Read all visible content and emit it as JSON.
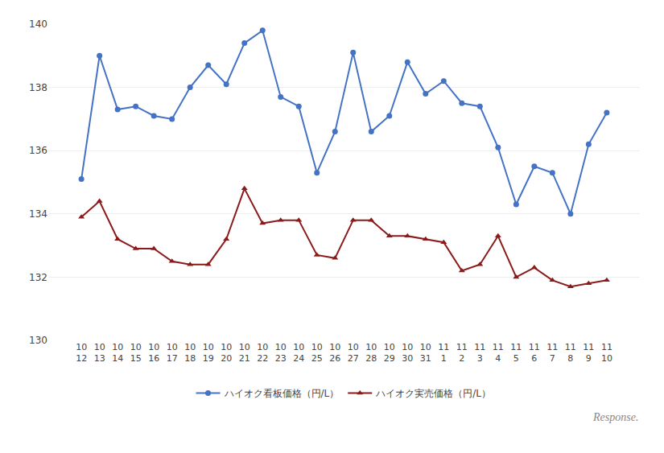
{
  "chart_data": {
    "type": "line",
    "categories": [
      "10\n12",
      "10\n13",
      "10\n14",
      "10\n15",
      "10\n16",
      "10\n17",
      "10\n18",
      "10\n19",
      "10\n20",
      "10\n21",
      "10\n22",
      "10\n23",
      "10\n24",
      "10\n25",
      "10\n26",
      "10\n27",
      "10\n28",
      "10\n29",
      "10\n30",
      "10\n31",
      "11\n1",
      "11\n2",
      "11\n3",
      "11\n4",
      "11\n5",
      "11\n6",
      "11\n7",
      "11\n8",
      "11\n9",
      "11\n10"
    ],
    "series": [
      {
        "name": "ハイオク看板価格（円/L）",
        "color": "#4472C4",
        "marker": "circle",
        "line_style": "solid",
        "values": [
          135.1,
          139.0,
          137.3,
          137.4,
          137.1,
          137.0,
          138.0,
          138.7,
          138.1,
          139.4,
          139.8,
          137.7,
          137.4,
          135.3,
          136.6,
          139.1,
          136.6,
          137.1,
          138.8,
          137.8,
          138.2,
          137.5,
          137.4,
          136.1,
          134.3,
          135.5,
          135.3,
          134.0,
          136.2,
          137.2
        ]
      },
      {
        "name": "ハイオク実売価格（円/L）",
        "color": "#8B1A1A",
        "marker": "triangle",
        "line_style": "solid",
        "values": [
          133.9,
          134.4,
          133.2,
          132.9,
          132.9,
          132.5,
          132.4,
          132.4,
          133.2,
          134.8,
          133.7,
          133.8,
          133.8,
          132.7,
          132.6,
          133.8,
          133.8,
          133.3,
          133.3,
          133.2,
          133.1,
          132.2,
          132.4,
          133.3,
          132.0,
          132.3,
          131.9,
          131.7,
          131.8,
          131.9
        ]
      }
    ],
    "ylim": [
      130,
      140
    ],
    "yticks": [
      130,
      132,
      134,
      136,
      138,
      140
    ],
    "grid": true,
    "legend": "bottom",
    "annotations": [
      "Response."
    ]
  }
}
